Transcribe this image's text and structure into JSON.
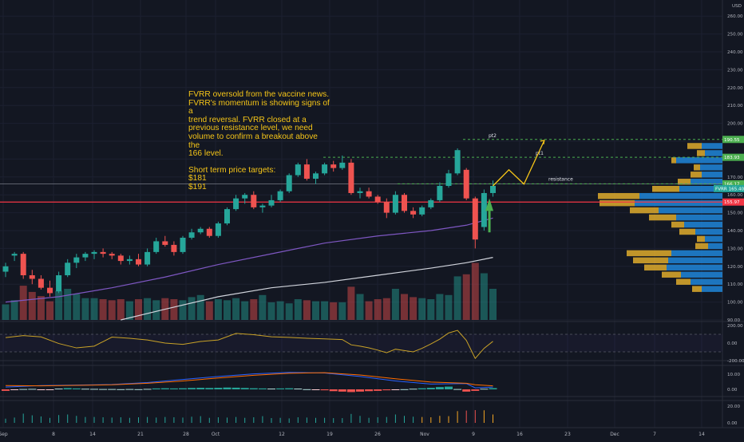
{
  "price_scale": {
    "currency": "USD",
    "ticks": [
      "260.00",
      "250.00",
      "240.00",
      "230.00",
      "220.00",
      "210.00",
      "200.00",
      "190.00",
      "180.00",
      "170.00",
      "160.00",
      "150.00",
      "140.00",
      "130.00",
      "120.00",
      "110.00",
      "100.00",
      "90.00"
    ],
    "badges": [
      {
        "label": "190.55",
        "color": "#4caf50"
      },
      {
        "label": "183.93",
        "color": "#4caf50"
      },
      {
        "label": "166.17",
        "color": "#4caf50"
      },
      {
        "label": "FVRR  165.40",
        "color": "#26a69a"
      },
      {
        "label": "155.97",
        "color": "#f23645"
      }
    ]
  },
  "time_axis": {
    "labels": [
      "Sep",
      "8",
      "14",
      "21",
      "28",
      "Oct",
      "12",
      "19",
      "26",
      "Nov",
      "9",
      "16",
      "23",
      "Dec",
      "7",
      "14"
    ]
  },
  "annotation": {
    "lines": [
      "FVRR oversold from the vaccine news.",
      "FVRR's momentum is showing signs of a",
      "trend reversal. FVRR closed at a",
      "previous resistance level, we need",
      "volume to confirm a breakout above the",
      "166 level.",
      "",
      "Short term price targets:",
      "$181",
      "$191"
    ]
  },
  "levels": {
    "pt2": "pt2",
    "pt1": "pt1",
    "resistance": "resistance"
  },
  "indicator_scales": {
    "cci": [
      "200.00",
      "0.00",
      "-200.00"
    ],
    "macd": [
      "10.00",
      "0.00"
    ],
    "third": [
      "20.00",
      "0.00"
    ]
  },
  "colors": {
    "up": "#26a69a",
    "down": "#ef5350",
    "background": "#131722",
    "annotation": "#f5c518",
    "ma_purple": "#7e57c2",
    "ma_white": "#d1d4dc",
    "support_red": "#f23645"
  },
  "chart_data": {
    "type": "candlestick",
    "ylim": [
      90,
      265
    ],
    "support_level": 155.97,
    "resistance_level": 166.17,
    "targets": [
      181,
      191
    ],
    "candles": [
      {
        "o": 117,
        "h": 122,
        "l": 114,
        "c": 120
      },
      {
        "o": 126,
        "h": 128,
        "l": 123,
        "c": 127
      },
      {
        "o": 127,
        "h": 128,
        "l": 113,
        "c": 115
      },
      {
        "o": 115,
        "h": 118,
        "l": 110,
        "c": 113
      },
      {
        "o": 113,
        "h": 115,
        "l": 107,
        "c": 108
      },
      {
        "o": 108,
        "h": 112,
        "l": 103,
        "c": 105
      },
      {
        "o": 106,
        "h": 117,
        "l": 105,
        "c": 115
      },
      {
        "o": 115,
        "h": 124,
        "l": 114,
        "c": 122
      },
      {
        "o": 122,
        "h": 127,
        "l": 119,
        "c": 125
      },
      {
        "o": 125,
        "h": 128,
        "l": 123,
        "c": 127
      },
      {
        "o": 127,
        "h": 129,
        "l": 124,
        "c": 128
      },
      {
        "o": 128,
        "h": 130,
        "l": 125,
        "c": 127
      },
      {
        "o": 127,
        "h": 128,
        "l": 124,
        "c": 126
      },
      {
        "o": 126,
        "h": 127,
        "l": 121,
        "c": 123
      },
      {
        "o": 123,
        "h": 126,
        "l": 121,
        "c": 124
      },
      {
        "o": 124,
        "h": 127,
        "l": 120,
        "c": 121
      },
      {
        "o": 121,
        "h": 130,
        "l": 120,
        "c": 128
      },
      {
        "o": 128,
        "h": 136,
        "l": 127,
        "c": 134
      },
      {
        "o": 134,
        "h": 137,
        "l": 131,
        "c": 132
      },
      {
        "o": 132,
        "h": 134,
        "l": 126,
        "c": 128
      },
      {
        "o": 128,
        "h": 137,
        "l": 127,
        "c": 136
      },
      {
        "o": 136,
        "h": 141,
        "l": 135,
        "c": 139
      },
      {
        "o": 139,
        "h": 142,
        "l": 138,
        "c": 141
      },
      {
        "o": 141,
        "h": 142,
        "l": 136,
        "c": 137
      },
      {
        "o": 137,
        "h": 145,
        "l": 136,
        "c": 144
      },
      {
        "o": 144,
        "h": 153,
        "l": 143,
        "c": 152
      },
      {
        "o": 152,
        "h": 160,
        "l": 151,
        "c": 158
      },
      {
        "o": 158,
        "h": 161,
        "l": 155,
        "c": 160
      },
      {
        "o": 160,
        "h": 162,
        "l": 152,
        "c": 153
      },
      {
        "o": 153,
        "h": 155,
        "l": 150,
        "c": 154
      },
      {
        "o": 154,
        "h": 160,
        "l": 153,
        "c": 157
      },
      {
        "o": 157,
        "h": 163,
        "l": 156,
        "c": 162
      },
      {
        "o": 162,
        "h": 172,
        "l": 161,
        "c": 171
      },
      {
        "o": 171,
        "h": 178,
        "l": 170,
        "c": 177
      },
      {
        "o": 177,
        "h": 180,
        "l": 168,
        "c": 169
      },
      {
        "o": 169,
        "h": 173,
        "l": 166,
        "c": 172
      },
      {
        "o": 172,
        "h": 178,
        "l": 171,
        "c": 177
      },
      {
        "o": 177,
        "h": 179,
        "l": 173,
        "c": 175
      },
      {
        "o": 175,
        "h": 182,
        "l": 174,
        "c": 178
      },
      {
        "o": 178,
        "h": 180,
        "l": 160,
        "c": 161
      },
      {
        "o": 161,
        "h": 164,
        "l": 158,
        "c": 162
      },
      {
        "o": 162,
        "h": 164,
        "l": 158,
        "c": 159
      },
      {
        "o": 159,
        "h": 160,
        "l": 155,
        "c": 156
      },
      {
        "o": 156,
        "h": 158,
        "l": 147,
        "c": 150
      },
      {
        "o": 150,
        "h": 162,
        "l": 149,
        "c": 160
      },
      {
        "o": 160,
        "h": 161,
        "l": 150,
        "c": 151
      },
      {
        "o": 151,
        "h": 153,
        "l": 147,
        "c": 149
      },
      {
        "o": 149,
        "h": 154,
        "l": 148,
        "c": 153
      },
      {
        "o": 153,
        "h": 158,
        "l": 152,
        "c": 157
      },
      {
        "o": 157,
        "h": 167,
        "l": 156,
        "c": 165
      },
      {
        "o": 165,
        "h": 174,
        "l": 164,
        "c": 172
      },
      {
        "o": 172,
        "h": 186,
        "l": 171,
        "c": 185
      },
      {
        "o": 174,
        "h": 175,
        "l": 157,
        "c": 158
      },
      {
        "o": 158,
        "h": 159,
        "l": 130,
        "c": 135
      },
      {
        "o": 142,
        "h": 163,
        "l": 140,
        "c": 161
      },
      {
        "o": 161,
        "h": 168,
        "l": 159,
        "c": 165
      }
    ],
    "volume": [
      15,
      19,
      33,
      27,
      23,
      18,
      28,
      30,
      25,
      21,
      21,
      20,
      19,
      20,
      18,
      20,
      21,
      19,
      21,
      20,
      19,
      22,
      24,
      18,
      20,
      19,
      21,
      18,
      20,
      24,
      17,
      18,
      16,
      20,
      19,
      18,
      18,
      17,
      17,
      32,
      25,
      18,
      20,
      21,
      30,
      25,
      22,
      21,
      20,
      25,
      24,
      42,
      44,
      55,
      45,
      30
    ],
    "ma_purple": [
      [
        0,
        100
      ],
      [
        6,
        103
      ],
      [
        12,
        108
      ],
      [
        18,
        114
      ],
      [
        24,
        121
      ],
      [
        30,
        127
      ],
      [
        36,
        133
      ],
      [
        42,
        137
      ],
      [
        48,
        140
      ],
      [
        52,
        143
      ],
      [
        55,
        147
      ]
    ],
    "ma_white": [
      [
        13,
        90
      ],
      [
        18,
        96
      ],
      [
        24,
        103
      ],
      [
        30,
        108
      ],
      [
        36,
        111
      ],
      [
        42,
        115
      ],
      [
        48,
        119
      ],
      [
        52,
        122
      ],
      [
        55,
        125
      ]
    ],
    "cci": [
      [
        0,
        62
      ],
      [
        2,
        85
      ],
      [
        4,
        70
      ],
      [
        6,
        -5
      ],
      [
        8,
        -55
      ],
      [
        10,
        -35
      ],
      [
        12,
        68
      ],
      [
        14,
        55
      ],
      [
        16,
        35
      ],
      [
        18,
        0
      ],
      [
        20,
        -15
      ],
      [
        22,
        18
      ],
      [
        24,
        35
      ],
      [
        26,
        110
      ],
      [
        28,
        95
      ],
      [
        30,
        72
      ],
      [
        32,
        65
      ],
      [
        34,
        55
      ],
      [
        36,
        48
      ],
      [
        38,
        40
      ],
      [
        39,
        -20
      ],
      [
        40,
        -35
      ],
      [
        41,
        -55
      ],
      [
        42,
        -80
      ],
      [
        43,
        -110
      ],
      [
        44,
        -70
      ],
      [
        45,
        -85
      ],
      [
        46,
        -100
      ],
      [
        47,
        -60
      ],
      [
        48,
        -10
      ],
      [
        49,
        45
      ],
      [
        50,
        115
      ],
      [
        51,
        145
      ],
      [
        52,
        30
      ],
      [
        53,
        -175
      ],
      [
        54,
        -60
      ],
      [
        55,
        20
      ]
    ],
    "macd_line": [
      [
        0,
        1.5
      ],
      [
        4,
        2.5
      ],
      [
        8,
        2.8
      ],
      [
        12,
        3.2
      ],
      [
        16,
        4.5
      ],
      [
        20,
        6.5
      ],
      [
        24,
        8.5
      ],
      [
        28,
        10.2
      ],
      [
        32,
        11.2
      ],
      [
        36,
        10.8
      ],
      [
        40,
        8.5
      ],
      [
        44,
        5.5
      ],
      [
        48,
        3.5
      ],
      [
        52,
        3.8
      ],
      [
        53,
        1.0
      ],
      [
        55,
        1.5
      ]
    ],
    "signal_line": [
      [
        0,
        2.5
      ],
      [
        4,
        2.3
      ],
      [
        8,
        2.6
      ],
      [
        12,
        3.0
      ],
      [
        16,
        4.0
      ],
      [
        20,
        5.5
      ],
      [
        24,
        7.5
      ],
      [
        28,
        9.3
      ],
      [
        32,
        10.6
      ],
      [
        36,
        11.0
      ],
      [
        40,
        9.5
      ],
      [
        44,
        7.0
      ],
      [
        48,
        4.8
      ],
      [
        52,
        4.0
      ],
      [
        53,
        3.0
      ],
      [
        55,
        2.3
      ]
    ],
    "macd_hist": [
      -1,
      -0.3,
      0.2,
      0.3,
      -0.1,
      -0.3,
      0.5,
      0.8,
      0.6,
      0.4,
      0.3,
      0.2,
      0.2,
      0.1,
      0.2,
      0.1,
      0.3,
      0.6,
      0.7,
      0.6,
      0.7,
      0.9,
      1.0,
      0.9,
      1.0,
      1.2,
      1.1,
      0.9,
      0.7,
      0.6,
      0.5,
      0.6,
      0.7,
      0.5,
      0.1,
      -0.2,
      -0.6,
      -1.2,
      -1.5,
      -1.8,
      -1.5,
      -1.2,
      -1.0,
      -0.6,
      -0.3,
      0.1,
      0.4,
      0.7,
      1.0,
      1.5,
      1.8,
      0.2,
      -1.5,
      -1.0,
      0.4,
      0.8
    ],
    "volume_profile": [
      {
        "p": 187,
        "a": 18,
        "b": 26
      },
      {
        "p": 183,
        "a": 10,
        "b": 22
      },
      {
        "p": 179,
        "a": 6,
        "b": 58
      },
      {
        "p": 175,
        "a": 8,
        "b": 28
      },
      {
        "p": 171,
        "a": 14,
        "b": 26
      },
      {
        "p": 167,
        "a": 16,
        "b": 40
      },
      {
        "p": 163,
        "a": 34,
        "b": 54
      },
      {
        "p": 159,
        "a": 52,
        "b": 104
      },
      {
        "p": 155,
        "a": 44,
        "b": 110
      },
      {
        "p": 151,
        "a": 36,
        "b": 80
      },
      {
        "p": 147,
        "a": 34,
        "b": 58
      },
      {
        "p": 143,
        "a": 16,
        "b": 48
      },
      {
        "p": 139,
        "a": 20,
        "b": 34
      },
      {
        "p": 135,
        "a": 10,
        "b": 22
      },
      {
        "p": 131,
        "a": 16,
        "b": 18
      },
      {
        "p": 127,
        "a": 56,
        "b": 64
      },
      {
        "p": 123,
        "a": 44,
        "b": 68
      },
      {
        "p": 119,
        "a": 28,
        "b": 70
      },
      {
        "p": 115,
        "a": 24,
        "b": 52
      },
      {
        "p": 111,
        "a": 18,
        "b": 40
      },
      {
        "p": 107,
        "a": 12,
        "b": 26
      }
    ]
  }
}
